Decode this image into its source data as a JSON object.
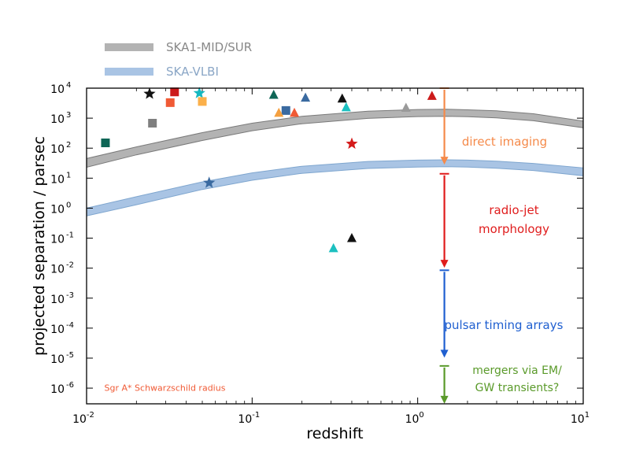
{
  "chart_data": {
    "type": "scatter",
    "xlabel": "redshift",
    "ylabel": "projected separation / parsec",
    "xscale": "log",
    "yscale": "log",
    "xlim": [
      0.01,
      10
    ],
    "ylim": [
      3e-07,
      10000
    ],
    "x_ticks": [
      {
        "value": 0.01,
        "base": "10",
        "exp": "-2"
      },
      {
        "value": 0.1,
        "base": "10",
        "exp": "-1"
      },
      {
        "value": 1,
        "base": "10",
        "exp": "0"
      },
      {
        "value": 10,
        "base": "10",
        "exp": "1"
      }
    ],
    "y_ticks": [
      {
        "value": 1e-06,
        "base": "10",
        "exp": "-6"
      },
      {
        "value": 1e-05,
        "base": "10",
        "exp": "-5"
      },
      {
        "value": 0.0001,
        "base": "10",
        "exp": "-4"
      },
      {
        "value": 0.001,
        "base": "10",
        "exp": "-3"
      },
      {
        "value": 0.01,
        "base": "10",
        "exp": "-2"
      },
      {
        "value": 0.1,
        "base": "10",
        "exp": "-1"
      },
      {
        "value": 1,
        "base": "10",
        "exp": "0"
      },
      {
        "value": 10,
        "base": "10",
        "exp": "1"
      },
      {
        "value": 100,
        "base": "10",
        "exp": "2"
      },
      {
        "value": 1000,
        "base": "10",
        "exp": "3"
      },
      {
        "value": 10000,
        "base": "10",
        "exp": "4"
      }
    ],
    "legend": [
      {
        "label": "SKA1-MID/SUR",
        "color": "#b3b3b3"
      },
      {
        "label": "SKA-VLBI",
        "color": "#a9c4e4"
      }
    ],
    "bands": [
      {
        "name": "SKA1-MID/SUR",
        "fill": "#b3b3b3",
        "edge": "#7a7a7a",
        "x": [
          0.01,
          0.02,
          0.05,
          0.1,
          0.2,
          0.5,
          1,
          1.5,
          2,
          3,
          5,
          10
        ],
        "lower": [
          23,
          60,
          180,
          380,
          650,
          980,
          1130,
          1150,
          1120,
          1020,
          820,
          480
        ],
        "upper": [
          45,
          110,
          330,
          680,
          1150,
          1700,
          1950,
          1980,
          1900,
          1750,
          1400,
          800
        ]
      },
      {
        "name": "SKA-VLBI",
        "fill": "#a9c4e4",
        "edge": "#7fa6cf",
        "x": [
          0.01,
          0.02,
          0.05,
          0.1,
          0.2,
          0.5,
          1,
          1.5,
          2,
          3,
          5,
          10
        ],
        "lower": [
          0.55,
          1.3,
          4.2,
          8.5,
          14.5,
          21,
          23.5,
          24,
          23.5,
          21.5,
          18,
          12
        ],
        "upper": [
          1.0,
          2.4,
          7.5,
          15,
          25,
          36,
          40,
          41,
          40,
          37,
          31,
          22
        ]
      }
    ],
    "points": [
      {
        "marker": "star",
        "color": "#111111",
        "x": 0.024,
        "y": 6500
      },
      {
        "marker": "star",
        "color": "#16b8c0",
        "x": 0.048,
        "y": 6800
      },
      {
        "marker": "star",
        "color": "#d41a1a",
        "x": 0.4,
        "y": 140
      },
      {
        "marker": "star",
        "color": "#3a6aa0",
        "x": 0.055,
        "y": 7
      },
      {
        "marker": "square",
        "color": "#cc1a1a",
        "x": 0.034,
        "y": 7500
      },
      {
        "marker": "square",
        "color": "#f05a35",
        "x": 0.032,
        "y": 3300
      },
      {
        "marker": "square",
        "color": "#fbb04a",
        "x": 0.05,
        "y": 3600
      },
      {
        "marker": "square",
        "color": "#7f7f7f",
        "x": 0.025,
        "y": 680
      },
      {
        "marker": "square",
        "color": "#0e6656",
        "x": 0.013,
        "y": 150
      },
      {
        "marker": "square",
        "color": "#3a6aa0",
        "x": 0.16,
        "y": 1800
      },
      {
        "marker": "triangle",
        "color": "#0e6656",
        "x": 0.135,
        "y": 6000
      },
      {
        "marker": "triangle",
        "color": "#3a6aa0",
        "x": 0.21,
        "y": 4800
      },
      {
        "marker": "triangle",
        "color": "#111111",
        "x": 0.35,
        "y": 4500
      },
      {
        "marker": "triangle",
        "color": "#1cc0c0",
        "x": 0.37,
        "y": 2300
      },
      {
        "marker": "triangle",
        "color": "#f4a040",
        "x": 0.145,
        "y": 1500
      },
      {
        "marker": "triangle",
        "color": "#f05a35",
        "x": 0.18,
        "y": 1500
      },
      {
        "marker": "triangle",
        "color": "#9a9a9a",
        "x": 0.85,
        "y": 2200
      },
      {
        "marker": "triangle",
        "color": "#cc1a1a",
        "x": 1.22,
        "y": 5500
      },
      {
        "marker": "triangle",
        "color": "#111111",
        "x": 0.4,
        "y": 0.1
      },
      {
        "marker": "triangle",
        "color": "#1cc0c0",
        "x": 0.31,
        "y": 0.046
      }
    ],
    "regimes": [
      {
        "label": "direct imaging",
        "color": "#f58a4a",
        "x": 1.45,
        "y_top": 10000,
        "y_bottom": 30
      },
      {
        "label": "radio-jet\nmorphology",
        "color": "#e01c1c",
        "x": 1.45,
        "y_top": 14,
        "y_bottom": 0.011
      },
      {
        "label": "pulsar timing arrays",
        "color": "#1f5fd0",
        "x": 1.45,
        "y_top": 0.0085,
        "y_bottom": 1.1e-05
      },
      {
        "label": "mergers via EM/\nGW transients?",
        "color": "#5a9a2a",
        "x": 1.45,
        "y_top": 5.5e-06,
        "y_bottom": 3.2e-07
      }
    ],
    "annotations": [
      {
        "text": "Sgr A* Schwarzschild radius",
        "color": "#f05a35",
        "x": 0.0128,
        "y": 1.05e-06
      }
    ]
  }
}
